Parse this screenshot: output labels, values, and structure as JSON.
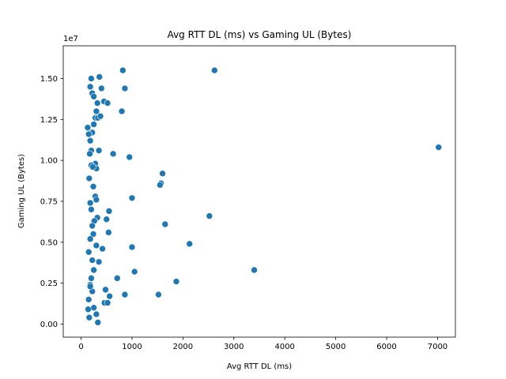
{
  "chart_data": {
    "type": "scatter",
    "title": "Avg RTT DL (ms) vs Gaming UL (Bytes)",
    "xlabel": "Avg RTT DL (ms)",
    "ylabel": "Gaming UL (Bytes)",
    "y_offset_label": "1e7",
    "xlim": [
      -350,
      7350
    ],
    "ylim": [
      -0.08,
      1.7
    ],
    "x_ticks": [
      0,
      1000,
      2000,
      3000,
      4000,
      5000,
      6000,
      7000
    ],
    "x_tick_labels": [
      "0",
      "1000",
      "2000",
      "3000",
      "4000",
      "5000",
      "6000",
      "7000"
    ],
    "y_ticks": [
      0.0,
      0.25,
      0.5,
      0.75,
      1.0,
      1.25,
      1.5
    ],
    "y_tick_labels": [
      "0.00",
      "0.25",
      "0.50",
      "0.75",
      "1.00",
      "1.25",
      "1.50"
    ],
    "grid": false,
    "marker_color": "#1f77b4",
    "series": [
      {
        "x": [
          2620,
          820,
          860,
          800,
          950,
          7020,
          630,
          1600,
          1570,
          1550,
          1000,
          2520,
          1650,
          550,
          500,
          2130,
          540,
          420,
          1000,
          1050,
          3400,
          710,
          1870,
          480,
          860,
          1520,
          560,
          460,
          250,
          520,
          300,
          330,
          360,
          200,
          180,
          220,
          250,
          320,
          400,
          450,
          520,
          300,
          280,
          250,
          220,
          180,
          150,
          130,
          330,
          380,
          200,
          170,
          280,
          300,
          350,
          200,
          230,
          160,
          240,
          280,
          300,
          180,
          200,
          320,
          260,
          220,
          240,
          180,
          300,
          150,
          220,
          350,
          250,
          200,
          180,
          220,
          150,
          140,
          160,
          180
        ],
        "y": [
          1.55,
          1.55,
          1.44,
          1.3,
          1.02,
          1.08,
          1.04,
          0.92,
          0.86,
          0.85,
          0.77,
          0.66,
          0.61,
          0.69,
          0.64,
          0.49,
          0.56,
          0.46,
          0.47,
          0.32,
          0.33,
          0.28,
          0.26,
          0.21,
          0.18,
          0.18,
          0.17,
          0.13,
          0.1,
          0.13,
          0.06,
          0.01,
          1.51,
          1.5,
          1.45,
          1.41,
          1.39,
          1.35,
          1.44,
          1.36,
          1.35,
          1.3,
          1.26,
          1.22,
          1.17,
          1.12,
          1.16,
          1.2,
          1.26,
          1.27,
          1.06,
          1.04,
          0.98,
          0.95,
          1.06,
          0.97,
          0.96,
          0.89,
          0.84,
          0.78,
          0.76,
          0.74,
          0.7,
          0.65,
          0.63,
          0.6,
          0.55,
          0.52,
          0.48,
          0.44,
          0.39,
          0.38,
          0.33,
          0.28,
          0.24,
          0.2,
          0.15,
          0.09,
          0.04,
          0.23
        ]
      }
    ]
  }
}
